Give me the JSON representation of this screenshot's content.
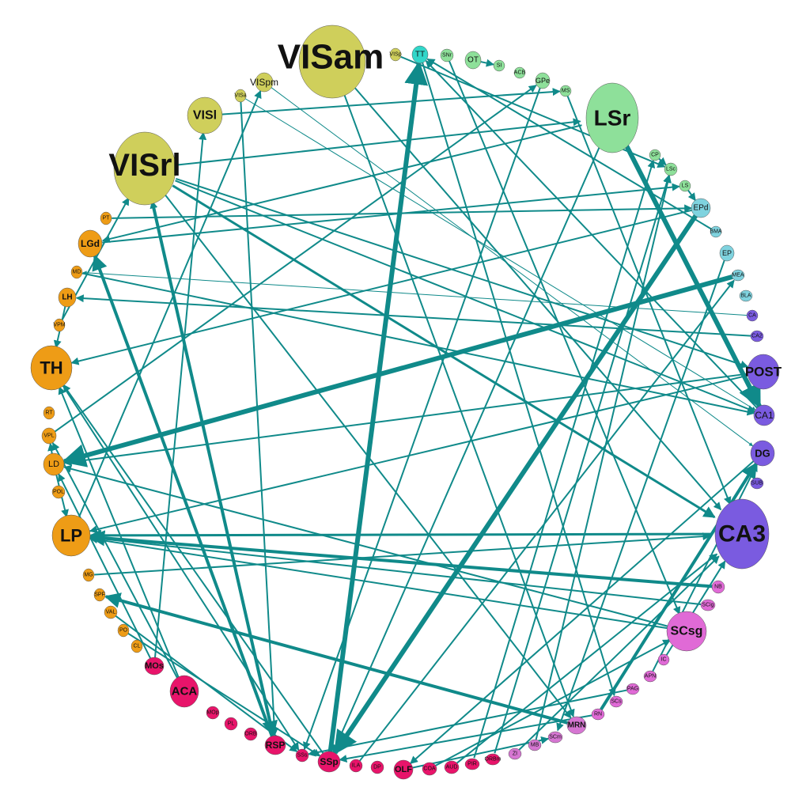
{
  "colors": {
    "edge": "#108a8a",
    "visual": "#cfcf5b",
    "striatum": "#8ee09a",
    "olfactory": "#31d6c9",
    "amygdala": "#7fd3df",
    "hippocampus": "#7a5be0",
    "thalamus": "#ee9c16",
    "midbrain": "#e06ad6",
    "cortex": "#e8146a",
    "brainstem": "#d676d2"
  },
  "nodes": [
    {
      "id": "VISam",
      "label": "VISam",
      "group": "visual"
    },
    {
      "id": "VISp",
      "label": "VISp",
      "group": "visual"
    },
    {
      "id": "TT",
      "label": "TT",
      "group": "olfactory"
    },
    {
      "id": "SNr",
      "label": "SNr",
      "group": "striatum"
    },
    {
      "id": "OT",
      "label": "OT",
      "group": "striatum"
    },
    {
      "id": "SI",
      "label": "SI",
      "group": "striatum"
    },
    {
      "id": "ACB",
      "label": "ACB",
      "group": "striatum"
    },
    {
      "id": "GPe",
      "label": "GPe",
      "group": "striatum"
    },
    {
      "id": "MS",
      "label": "MS",
      "group": "striatum"
    },
    {
      "id": "LSr",
      "label": "LSr",
      "group": "striatum"
    },
    {
      "id": "CP",
      "label": "CP",
      "group": "striatum"
    },
    {
      "id": "LSc",
      "label": "LSc",
      "group": "striatum"
    },
    {
      "id": "LS",
      "label": "LS",
      "group": "striatum"
    },
    {
      "id": "EPd",
      "label": "EPd",
      "group": "amygdala"
    },
    {
      "id": "BMA",
      "label": "BMA",
      "group": "amygdala"
    },
    {
      "id": "EP",
      "label": "EP",
      "group": "amygdala"
    },
    {
      "id": "MEA",
      "label": "MEA",
      "group": "amygdala"
    },
    {
      "id": "BLA",
      "label": "BLA",
      "group": "amygdala"
    },
    {
      "id": "CA",
      "label": "CA",
      "group": "hippocampus"
    },
    {
      "id": "CA2",
      "label": "CA2",
      "group": "hippocampus"
    },
    {
      "id": "POST",
      "label": "POST",
      "group": "hippocampus"
    },
    {
      "id": "CA1",
      "label": "CA1",
      "group": "hippocampus"
    },
    {
      "id": "DG",
      "label": "DG",
      "group": "hippocampus"
    },
    {
      "id": "SUB",
      "label": "SUB",
      "group": "hippocampus"
    },
    {
      "id": "CA3",
      "label": "CA3",
      "group": "hippocampus"
    },
    {
      "id": "NB",
      "label": "NB",
      "group": "midbrain"
    },
    {
      "id": "SCig",
      "label": "SCig",
      "group": "midbrain"
    },
    {
      "id": "SCsg",
      "label": "SCsg",
      "group": "midbrain"
    },
    {
      "id": "IC",
      "label": "IC",
      "group": "midbrain"
    },
    {
      "id": "APN",
      "label": "APN",
      "group": "midbrain"
    },
    {
      "id": "PAG",
      "label": "PAG",
      "group": "midbrain"
    },
    {
      "id": "SCs",
      "label": "SCs",
      "group": "midbrain"
    },
    {
      "id": "RN",
      "label": "RN",
      "group": "midbrain"
    },
    {
      "id": "MRN",
      "label": "MRN",
      "group": "brainstem"
    },
    {
      "id": "SCm",
      "label": "SCm",
      "group": "brainstem"
    },
    {
      "id": "MB",
      "label": "MB",
      "group": "brainstem"
    },
    {
      "id": "ZI",
      "label": "ZI",
      "group": "brainstem"
    },
    {
      "id": "ORBm",
      "label": "ORBm",
      "group": "cortex"
    },
    {
      "id": "PIR",
      "label": "PIR",
      "group": "cortex"
    },
    {
      "id": "AUD",
      "label": "AUD",
      "group": "cortex"
    },
    {
      "id": "COA",
      "label": "COA",
      "group": "cortex"
    },
    {
      "id": "OLF",
      "label": "OLF",
      "group": "cortex"
    },
    {
      "id": "DP",
      "label": "DP",
      "group": "cortex"
    },
    {
      "id": "ILA",
      "label": "ILA",
      "group": "cortex"
    },
    {
      "id": "SSp",
      "label": "SSp",
      "group": "cortex"
    },
    {
      "id": "SSs",
      "label": "SSs",
      "group": "cortex"
    },
    {
      "id": "RSP",
      "label": "RSP",
      "group": "cortex"
    },
    {
      "id": "ORB",
      "label": "ORB",
      "group": "cortex"
    },
    {
      "id": "PL",
      "label": "PL",
      "group": "cortex"
    },
    {
      "id": "MOp",
      "label": "MOp",
      "group": "cortex"
    },
    {
      "id": "ACA",
      "label": "ACA",
      "group": "cortex"
    },
    {
      "id": "MOs",
      "label": "MOs",
      "group": "cortex"
    },
    {
      "id": "CL",
      "label": "CL",
      "group": "thalamus"
    },
    {
      "id": "PO",
      "label": "PO",
      "group": "thalamus"
    },
    {
      "id": "VAL",
      "label": "VAL",
      "group": "thalamus"
    },
    {
      "id": "SPF",
      "label": "SPF",
      "group": "thalamus"
    },
    {
      "id": "MG",
      "label": "MG",
      "group": "thalamus"
    },
    {
      "id": "LP",
      "label": "LP",
      "group": "thalamus"
    },
    {
      "id": "POL",
      "label": "POL",
      "group": "thalamus"
    },
    {
      "id": "LD",
      "label": "LD",
      "group": "thalamus"
    },
    {
      "id": "VPL",
      "label": "VPL",
      "group": "thalamus"
    },
    {
      "id": "RT",
      "label": "RT",
      "group": "thalamus"
    },
    {
      "id": "TH",
      "label": "TH",
      "group": "thalamus"
    },
    {
      "id": "VPM",
      "label": "VPM",
      "group": "thalamus"
    },
    {
      "id": "LH",
      "label": "LH",
      "group": "thalamus"
    },
    {
      "id": "MD",
      "label": "MD",
      "group": "thalamus"
    },
    {
      "id": "LGd",
      "label": "LGd",
      "group": "thalamus"
    },
    {
      "id": "PT",
      "label": "PT",
      "group": "thalamus"
    },
    {
      "id": "VISrl",
      "label": "VISrl",
      "group": "visual"
    },
    {
      "id": "VISl",
      "label": "VISl",
      "group": "visual"
    },
    {
      "id": "VISa",
      "label": "VISa",
      "group": "visual"
    },
    {
      "id": "VISpm",
      "label": "VISpm",
      "group": "visual"
    }
  ],
  "edges": [
    [
      "SSp",
      "TT",
      3
    ],
    [
      "VISrl",
      "CA3",
      1.5
    ],
    [
      "VISrl",
      "POST",
      1
    ],
    [
      "VISrl",
      "CA1",
      1
    ],
    [
      "VISam",
      "CA3",
      1
    ],
    [
      "VISam",
      "MRN",
      1
    ],
    [
      "VISl",
      "MS",
      1
    ],
    [
      "VISpm",
      "DG",
      0.5
    ],
    [
      "VISa",
      "CA1",
      0.5
    ],
    [
      "VISrl",
      "LSr",
      1
    ],
    [
      "VISrl",
      "RSP",
      2
    ],
    [
      "VISrl",
      "MRN",
      1
    ],
    [
      "LSr",
      "CA1",
      3
    ],
    [
      "LSr",
      "LGd",
      1
    ],
    [
      "LSr",
      "SSp",
      1
    ],
    [
      "LS",
      "EPd",
      1
    ],
    [
      "EPd",
      "TH",
      1
    ],
    [
      "EPd",
      "SSp",
      3
    ],
    [
      "MEA",
      "LD",
      3
    ],
    [
      "POST",
      "LP",
      1
    ],
    [
      "POST",
      "LD",
      1
    ],
    [
      "CA3",
      "LP",
      1.5
    ],
    [
      "NB",
      "LP",
      2
    ],
    [
      "SCig",
      "LP",
      1
    ],
    [
      "SCsg",
      "LP",
      1
    ],
    [
      "SCsg",
      "LD",
      1
    ],
    [
      "RN",
      "DG",
      2
    ],
    [
      "RN",
      "SSp",
      1
    ],
    [
      "MRN",
      "SPF",
      2
    ],
    [
      "SSp",
      "TH",
      1
    ],
    [
      "OLF",
      "SCm",
      1
    ],
    [
      "PIR",
      "CP",
      1
    ],
    [
      "ORBm",
      "LSc",
      1
    ],
    [
      "AUD",
      "CA3",
      1
    ],
    [
      "COA",
      "SCsg",
      1
    ],
    [
      "MB",
      "LSc",
      1
    ],
    [
      "ILA",
      "MEA",
      1
    ],
    [
      "RSP",
      "LGd",
      2
    ],
    [
      "RSP",
      "VISrl",
      1
    ],
    [
      "ACA",
      "TH",
      1
    ],
    [
      "ACA",
      "VPL",
      1
    ],
    [
      "MOs",
      "VISl",
      1
    ],
    [
      "MOs",
      "LD",
      1
    ],
    [
      "LP",
      "VISpm",
      1
    ],
    [
      "LD",
      "VPL",
      1
    ],
    [
      "LD",
      "LP",
      1
    ],
    [
      "VPL",
      "GPe",
      1
    ],
    [
      "VAL",
      "SSs",
      1
    ],
    [
      "PO",
      "SSp",
      1
    ],
    [
      "LH",
      "TH",
      1
    ],
    [
      "LGd",
      "LS",
      1
    ],
    [
      "PT",
      "EPd",
      1
    ],
    [
      "TT",
      "SCs",
      1
    ],
    [
      "SNr",
      "SCsg",
      1
    ],
    [
      "OT",
      "SI",
      1
    ],
    [
      "GPe",
      "SSs",
      1
    ],
    [
      "MS",
      "CA3",
      1
    ],
    [
      "CP",
      "LSc",
      1
    ],
    [
      "BMA",
      "TT",
      1
    ],
    [
      "EP",
      "SCm",
      1
    ],
    [
      "CA",
      "MD",
      0.5
    ],
    [
      "CA2",
      "LH",
      1
    ],
    [
      "DG",
      "OLF",
      1
    ],
    [
      "CA1",
      "TT",
      1
    ],
    [
      "IC",
      "CA3",
      1
    ],
    [
      "APN",
      "DG",
      1
    ],
    [
      "PAG",
      "SSs",
      1
    ],
    [
      "ZI",
      "CA3",
      1
    ],
    [
      "MG",
      "CA3",
      1
    ],
    [
      "TH",
      "SSs",
      1
    ],
    [
      "VPM",
      "VISrl",
      1
    ],
    [
      "MD",
      "CA1",
      1
    ],
    [
      "VISp",
      "LSc",
      1
    ],
    [
      "VISa",
      "RSP",
      1
    ]
  ]
}
